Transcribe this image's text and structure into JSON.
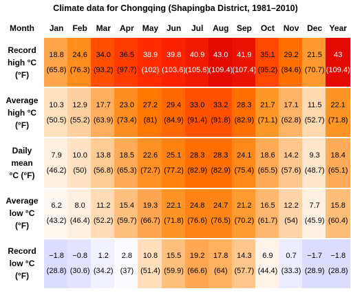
{
  "caption": "Climate data for Chongqing (Shapingba District, 1981–2010)",
  "month_header": "Month",
  "columns": [
    "Jan",
    "Feb",
    "Mar",
    "Apr",
    "May",
    "Jun",
    "Jul",
    "Aug",
    "Sep",
    "Oct",
    "Nov",
    "Dec",
    "Year"
  ],
  "rows": [
    {
      "label": [
        "Record",
        "high °C",
        "(°F)"
      ],
      "cells": [
        {
          "c": "18.8",
          "f": "(65.8)",
          "bg": "#ffa54d"
        },
        {
          "c": "24.6",
          "f": "(76.3)",
          "bg": "#ff8e1f"
        },
        {
          "c": "34.0",
          "f": "(93.2)",
          "bg": "#ff4f00"
        },
        {
          "c": "36.5",
          "f": "(97.7)",
          "bg": "#ff3d00"
        },
        {
          "c": "38.9",
          "f": "(102)",
          "bg": "#ff2c00",
          "light": true
        },
        {
          "c": "39.8",
          "f": "(103.6)",
          "bg": "#fb2200",
          "light": true
        },
        {
          "c": "40.9",
          "f": "(105.6)",
          "bg": "#f01a00",
          "light": true
        },
        {
          "c": "43.0",
          "f": "(109.4)",
          "bg": "#e30800",
          "light": true
        },
        {
          "c": "41.9",
          "f": "(107.4)",
          "bg": "#ea1200",
          "light": true
        },
        {
          "c": "35.1",
          "f": "(95.2)",
          "bg": "#ff4700"
        },
        {
          "c": "29.2",
          "f": "(84.6)",
          "bg": "#ff7000"
        },
        {
          "c": "21.5",
          "f": "(70.7)",
          "bg": "#ff9a33"
        },
        {
          "c": "43",
          "f": "(109.4)",
          "bg": "#e30800",
          "light": true
        }
      ]
    },
    {
      "label": [
        "Average",
        "high °C",
        "(°F)"
      ],
      "cells": [
        {
          "c": "10.3",
          "f": "(50.5)",
          "bg": "#ffe0bf"
        },
        {
          "c": "12.9",
          "f": "(55.2)",
          "bg": "#ffd09f"
        },
        {
          "c": "17.7",
          "f": "(63.9)",
          "bg": "#ffaf5f"
        },
        {
          "c": "23.0",
          "f": "(73.4)",
          "bg": "#ff8f22"
        },
        {
          "c": "27.2",
          "f": "(81)",
          "bg": "#ff7600"
        },
        {
          "c": "29.4",
          "f": "(84.9)",
          "bg": "#ff6800"
        },
        {
          "c": "33.0",
          "f": "(91.4)",
          "bg": "#ff5200"
        },
        {
          "c": "33.2",
          "f": "(91.8)",
          "bg": "#ff5100"
        },
        {
          "c": "28.3",
          "f": "(82.9)",
          "bg": "#ff6e00"
        },
        {
          "c": "21.7",
          "f": "(71.1)",
          "bg": "#ff9828"
        },
        {
          "c": "17.1",
          "f": "(62.8)",
          "bg": "#ffb366"
        },
        {
          "c": "11.5",
          "f": "(52.7)",
          "bg": "#ffd9b0"
        },
        {
          "c": "22.1",
          "f": "(71.8)",
          "bg": "#ff9525"
        }
      ]
    },
    {
      "label": [
        "Daily",
        "mean",
        "°C (°F)"
      ],
      "cells": [
        {
          "c": "7.9",
          "f": "(46.2)",
          "bg": "#fff0e0"
        },
        {
          "c": "10.0",
          "f": "(50)",
          "bg": "#ffe2c4"
        },
        {
          "c": "13.8",
          "f": "(56.8)",
          "bg": "#ffcb95"
        },
        {
          "c": "18.5",
          "f": "(65.3)",
          "bg": "#ffab58"
        },
        {
          "c": "22.6",
          "f": "(72.7)",
          "bg": "#ff9124"
        },
        {
          "c": "25.1",
          "f": "(77.2)",
          "bg": "#ff8212"
        },
        {
          "c": "28.3",
          "f": "(82.9)",
          "bg": "#ff6e00"
        },
        {
          "c": "28.3",
          "f": "(82.9)",
          "bg": "#ff6e00"
        },
        {
          "c": "24.1",
          "f": "(75.4)",
          "bg": "#ff891a"
        },
        {
          "c": "18.6",
          "f": "(65.5)",
          "bg": "#ffaa57"
        },
        {
          "c": "14.2",
          "f": "(57.6)",
          "bg": "#ffc78e"
        },
        {
          "c": "9.3",
          "f": "(48.7)",
          "bg": "#ffe5ca"
        },
        {
          "c": "18.4",
          "f": "(65.1)",
          "bg": "#ffab59"
        }
      ]
    },
    {
      "label": [
        "Average",
        "low °C",
        "(°F)"
      ],
      "cells": [
        {
          "c": "6.2",
          "f": "(43.2)",
          "bg": "#fff7f0"
        },
        {
          "c": "8.0",
          "f": "(46.4)",
          "bg": "#ffefdf"
        },
        {
          "c": "11.2",
          "f": "(52.2)",
          "bg": "#ffdbb6"
        },
        {
          "c": "15.4",
          "f": "(59.7)",
          "bg": "#ffc07f"
        },
        {
          "c": "19.3",
          "f": "(66.7)",
          "bg": "#ffa652"
        },
        {
          "c": "22.1",
          "f": "(71.8)",
          "bg": "#ff9525"
        },
        {
          "c": "24.8",
          "f": "(76.6)",
          "bg": "#ff8415"
        },
        {
          "c": "24.7",
          "f": "(76.5)",
          "bg": "#ff8516"
        },
        {
          "c": "21.2",
          "f": "(70.2)",
          "bg": "#ff9b30"
        },
        {
          "c": "16.5",
          "f": "(61.7)",
          "bg": "#ffb870"
        },
        {
          "c": "12.2",
          "f": "(54)",
          "bg": "#ffd4a8"
        },
        {
          "c": "7.7",
          "f": "(45.9)",
          "bg": "#fff1e2"
        },
        {
          "c": "15.8",
          "f": "(60.4)",
          "bg": "#ffbd7a"
        }
      ]
    },
    {
      "label": [
        "Record",
        "low °C",
        "(°F)"
      ],
      "cells": [
        {
          "c": "−1.8",
          "f": "(28.8)",
          "bg": "#dcdcff"
        },
        {
          "c": "−0.8",
          "f": "(30.6)",
          "bg": "#e3e3ff"
        },
        {
          "c": "1.2",
          "f": "(34.2)",
          "bg": "#f0f0ff"
        },
        {
          "c": "2.8",
          "f": "(37)",
          "bg": "#fafaff"
        },
        {
          "c": "10.8",
          "f": "(51.4)",
          "bg": "#ffdebb"
        },
        {
          "c": "15.5",
          "f": "(59.9)",
          "bg": "#ffc07e"
        },
        {
          "c": "19.2",
          "f": "(66.6)",
          "bg": "#ffa752"
        },
        {
          "c": "17.8",
          "f": "(64)",
          "bg": "#ffb15f"
        },
        {
          "c": "14.3",
          "f": "(57.7)",
          "bg": "#ffc68d"
        },
        {
          "c": "6.9",
          "f": "(44.4)",
          "bg": "#fff4ea"
        },
        {
          "c": "0.7",
          "f": "(33.3)",
          "bg": "#ececff"
        },
        {
          "c": "−1.7",
          "f": "(28.9)",
          "bg": "#dcdcff"
        },
        {
          "c": "−1.8",
          "f": "(28.8)",
          "bg": "#dcdcff"
        }
      ]
    }
  ]
}
